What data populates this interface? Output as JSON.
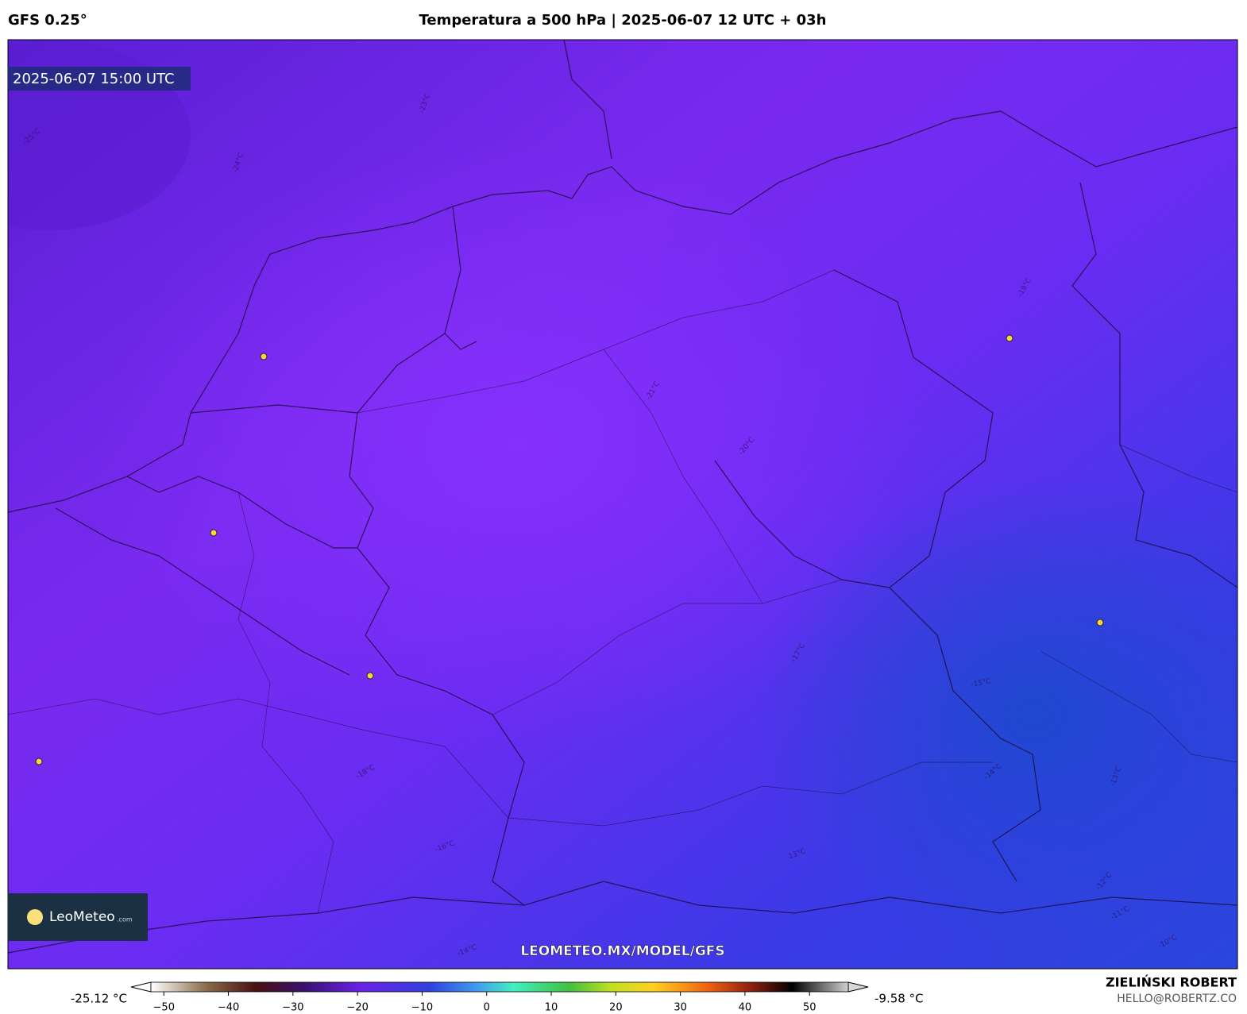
{
  "header": {
    "model": "GFS 0.25°",
    "title": "Temperatura a 500 hPa | 2025-06-07 12 UTC + 03h"
  },
  "map": {
    "timestamp": "2025-06-07 15:00 UTC",
    "url": "LEOMETEO.MX/MODEL/GFS",
    "logo": {
      "name": "LeoMeteo",
      "suffix": ".com"
    },
    "contour_labels": [
      "-25°C",
      "-24°C",
      "-23°C",
      "-21°C",
      "-20°C",
      "-19°C",
      "-18°C",
      "-17°C",
      "-16°C",
      "-15°C",
      "-14°C",
      "-13°C",
      "-13°C",
      "-12°C",
      "-11°C",
      "-10°C",
      "-14°C"
    ]
  },
  "colorbar": {
    "min_label": "-25.12 °C",
    "max_label": "-9.58 °C",
    "lim": [
      -52,
      56
    ],
    "ticks": [
      {
        "value": -50,
        "label": "−50"
      },
      {
        "value": -40,
        "label": "−40"
      },
      {
        "value": -30,
        "label": "−30"
      },
      {
        "value": -20,
        "label": "−20"
      },
      {
        "value": -10,
        "label": "−10"
      },
      0,
      10,
      20,
      30,
      40,
      50
    ]
  },
  "footer": {
    "author": "ZIELIŃSKI ROBERT",
    "email": "HELLO@ROBERTZ.CO"
  }
}
